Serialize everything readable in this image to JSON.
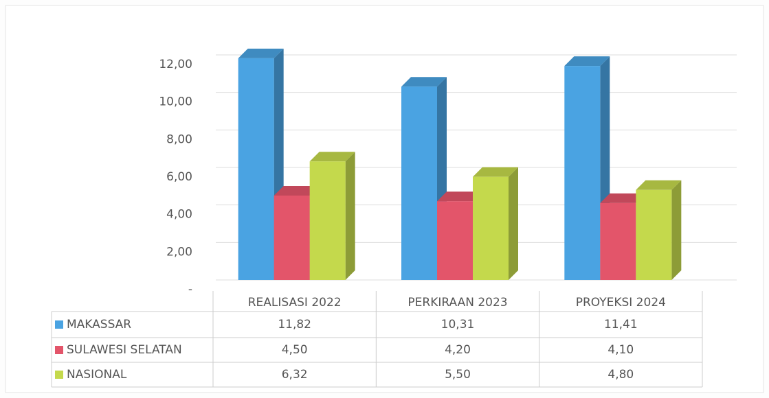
{
  "chart_data": {
    "type": "bar3d",
    "categories": [
      "REALISASI 2022",
      "PERKIRAAN 2023",
      "PROYEKSI 2024"
    ],
    "series": [
      {
        "name": "MAKASSAR",
        "color": "#4aa3e2",
        "values": [
          11.82,
          10.31,
          11.41
        ],
        "value_labels": [
          "11,82",
          "10,31",
          "11,41"
        ]
      },
      {
        "name": "SULAWESI SELATAN",
        "color": "#e3556a",
        "values": [
          4.5,
          4.2,
          4.1
        ],
        "value_labels": [
          "4,50",
          "4,20",
          "4,10"
        ]
      },
      {
        "name": "NASIONAL",
        "color": "#c4d94c",
        "values": [
          6.32,
          5.5,
          4.8
        ],
        "value_labels": [
          "6,32",
          "5,50",
          "4,80"
        ]
      }
    ],
    "ylim": [
      0,
      12
    ],
    "yticks": [
      {
        "value": 0,
        "label": "-"
      },
      {
        "value": 2,
        "label": "2,00"
      },
      {
        "value": 4,
        "label": "4,00"
      },
      {
        "value": 6,
        "label": "6,00"
      },
      {
        "value": 8,
        "label": "8,00"
      },
      {
        "value": 10,
        "label": "10,00"
      },
      {
        "value": 12,
        "label": "12,00"
      }
    ],
    "grid": true
  }
}
